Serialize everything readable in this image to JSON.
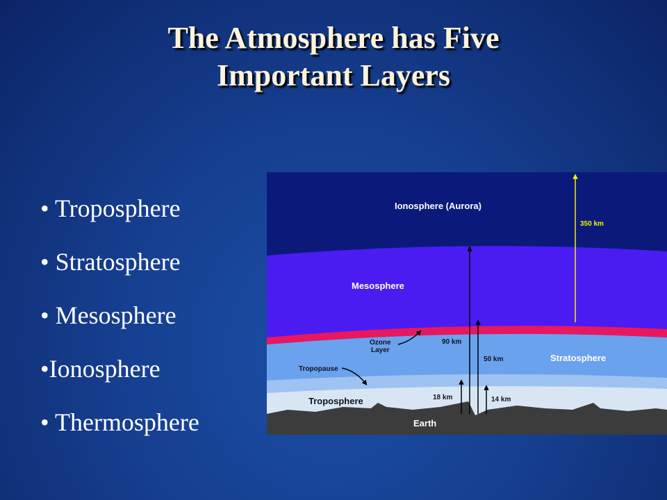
{
  "title": {
    "line1": "The Atmosphere has Five",
    "line2": "Important Layers"
  },
  "bullets": [
    "• Troposphere",
    "• Stratosphere",
    "• Mesosphere",
    "•Ionosphere",
    "• Thermosphere"
  ],
  "diagram": {
    "layers": {
      "ionosphere": "Ionosphere (Aurora)",
      "mesosphere": "Mesosphere",
      "stratosphere": "Stratosphere",
      "troposphere": "Troposphere",
      "earth": "Earth"
    },
    "annotations": {
      "ozone_line1": "Ozone",
      "ozone_line2": "Layer",
      "tropopause": "Tropopause"
    },
    "altitudes": {
      "a350": "350 km",
      "a90": "90 km",
      "a50": "50 km",
      "a18": "18 km",
      "a14": "14 km"
    },
    "colors": {
      "ionosphere": "#0b1a7a",
      "mesosphere": "#4a1cf2",
      "ozone": "#e8185f",
      "stratosphere": "#6aa2ee",
      "troposphere": "#d8e6f4",
      "earth": "#3c3c3c"
    }
  }
}
